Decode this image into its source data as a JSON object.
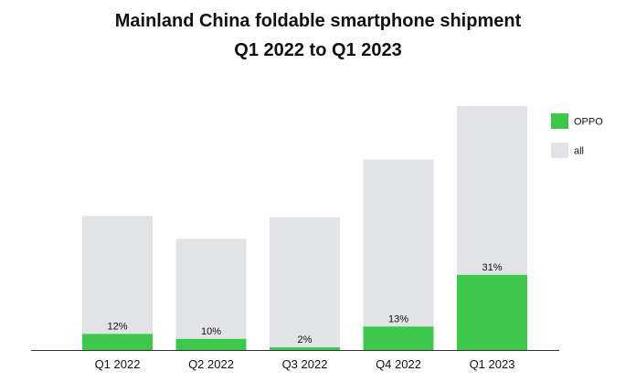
{
  "chart_data": {
    "type": "bar",
    "title": "Mainland China foldable smartphone shipment",
    "subtitle": "Q1 2022 to Q1 2023",
    "categories": [
      "Q1 2022",
      "Q2 2022",
      "Q3 2022",
      "Q4 2022",
      "Q1 2023"
    ],
    "series": [
      {
        "name": "all",
        "values": [
          100,
          83,
          99,
          142,
          182
        ],
        "color": "#e1e3e7"
      },
      {
        "name": "OPPO",
        "values": [
          12,
          8.3,
          2,
          17.5,
          56
        ],
        "color": "#3cc84a"
      }
    ],
    "data_labels": [
      "12%",
      "10%",
      "2%",
      "13%",
      "31%"
    ],
    "legend": {
      "placement": "top-right",
      "entries": [
        "OPPO",
        "all"
      ]
    },
    "ylim": [
      0,
      182
    ],
    "grid": false,
    "yaxis_visible": false
  }
}
